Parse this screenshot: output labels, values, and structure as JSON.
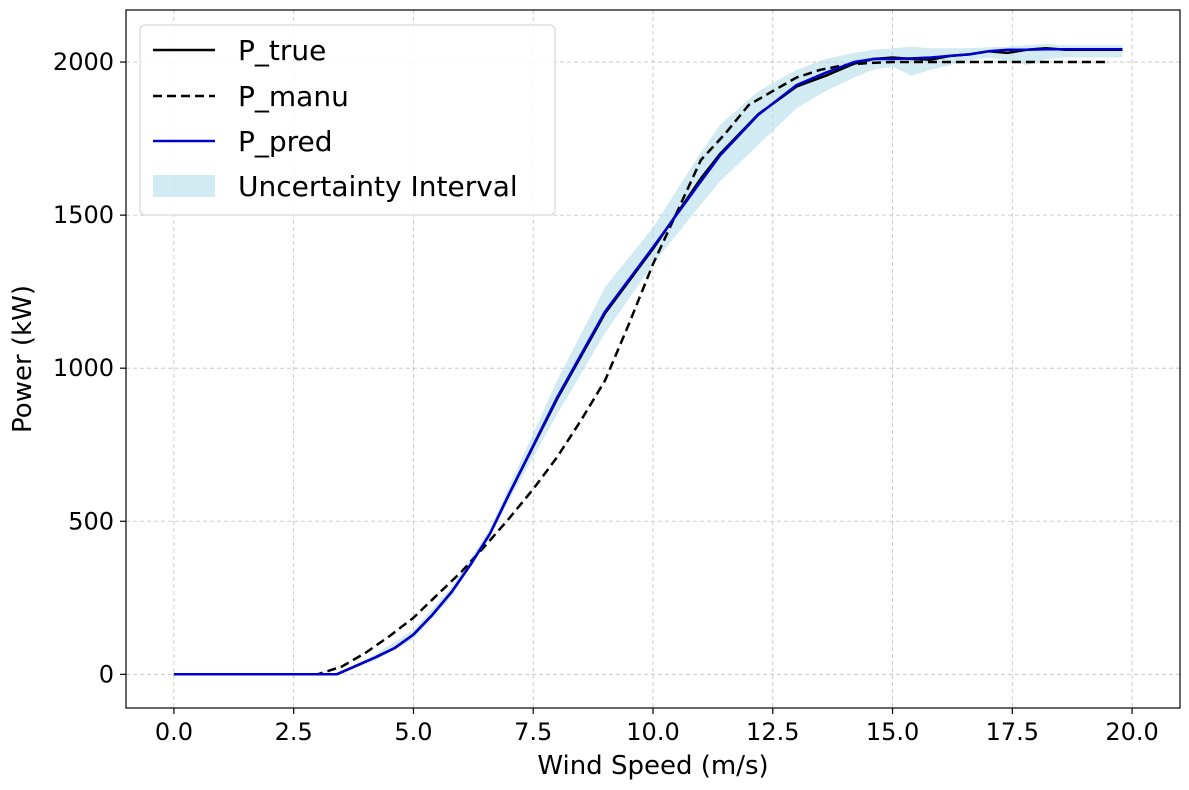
{
  "chart_data": {
    "type": "line",
    "xlabel": "Wind Speed (m/s)",
    "ylabel": "Power (kW)",
    "xlim": [
      -1.0,
      21.0
    ],
    "ylim": [
      -110,
      2170
    ],
    "xticks": [
      0.0,
      2.5,
      5.0,
      7.5,
      10.0,
      12.5,
      15.0,
      17.5,
      20.0
    ],
    "xtick_labels": [
      "0.0",
      "2.5",
      "5.0",
      "7.5",
      "10.0",
      "12.5",
      "15.0",
      "17.5",
      "20.0"
    ],
    "yticks": [
      0,
      500,
      1000,
      1500,
      2000
    ],
    "ytick_labels": [
      "0",
      "500",
      "1000",
      "1500",
      "2000"
    ],
    "grid": true,
    "legend_position": "top-left",
    "series": [
      {
        "name": "P_true",
        "style": "solid",
        "color": "#000000",
        "x": [
          0.0,
          1.0,
          2.0,
          3.0,
          3.4,
          4.2,
          4.6,
          5.0,
          5.4,
          5.8,
          6.2,
          6.6,
          7.0,
          8.0,
          9.0,
          10.0,
          11.0,
          11.4,
          12.2,
          13.0,
          13.6,
          14.2,
          14.6,
          15.0,
          15.4,
          15.8,
          16.2,
          16.6,
          17.0,
          17.4,
          17.8,
          18.2,
          18.6,
          19.0,
          19.8
        ],
        "values": [
          0,
          0,
          0,
          0,
          0,
          55,
          85,
          130,
          195,
          270,
          360,
          460,
          590,
          900,
          1180,
          1390,
          1620,
          1700,
          1830,
          1920,
          1955,
          1995,
          2010,
          2015,
          2010,
          2008,
          2020,
          2025,
          2035,
          2030,
          2040,
          2045,
          2040,
          2040,
          2040
        ]
      },
      {
        "name": "P_manu",
        "style": "dashed",
        "color": "#000000",
        "x": [
          0.0,
          1.0,
          2.0,
          3.0,
          3.5,
          4.0,
          4.5,
          5.0,
          5.5,
          6.0,
          6.5,
          7.0,
          7.5,
          8.0,
          8.5,
          9.0,
          9.5,
          10.0,
          10.5,
          11.0,
          11.5,
          12.0,
          12.5,
          13.0,
          13.5,
          14.0,
          14.5,
          15.0,
          16.0,
          17.0,
          18.0,
          19.0,
          19.5
        ],
        "values": [
          0,
          0,
          0,
          0,
          25,
          70,
          125,
          185,
          260,
          335,
          420,
          510,
          605,
          710,
          830,
          960,
          1145,
          1340,
          1510,
          1680,
          1765,
          1860,
          1905,
          1950,
          1975,
          1990,
          1997,
          2000,
          2000,
          2000,
          2000,
          2000,
          2000
        ]
      },
      {
        "name": "P_pred",
        "style": "solid",
        "color": "#0000cc",
        "x": [
          0.0,
          1.0,
          2.0,
          3.0,
          3.4,
          4.2,
          4.6,
          5.0,
          5.4,
          5.8,
          6.2,
          6.6,
          7.0,
          8.0,
          9.0,
          10.0,
          11.0,
          11.4,
          12.2,
          13.0,
          13.6,
          14.2,
          14.6,
          15.0,
          15.4,
          15.8,
          16.2,
          16.6,
          17.0,
          17.4,
          17.8,
          18.2,
          18.6,
          19.0,
          19.8
        ],
        "values": [
          0,
          0,
          0,
          0,
          0,
          55,
          85,
          130,
          195,
          270,
          360,
          460,
          590,
          905,
          1185,
          1395,
          1610,
          1695,
          1828,
          1925,
          1965,
          2000,
          2010,
          2010,
          2012,
          2015,
          2020,
          2025,
          2035,
          2040,
          2040,
          2042,
          2042,
          2042,
          2042
        ]
      }
    ],
    "band": {
      "name": "Uncertainty Interval",
      "color": "#add8e6",
      "x": [
        0.0,
        3.0,
        3.4,
        4.2,
        5.0,
        5.8,
        6.6,
        7.0,
        8.0,
        9.0,
        10.0,
        11.0,
        11.4,
        12.2,
        13.0,
        13.6,
        14.2,
        14.6,
        15.0,
        15.4,
        15.8,
        16.2,
        16.6,
        17.0,
        17.4,
        17.8,
        18.2,
        18.6,
        19.0,
        19.8
      ],
      "lower": [
        0,
        0,
        0,
        45,
        115,
        255,
        450,
        570,
        850,
        1115,
        1340,
        1535,
        1610,
        1730,
        1850,
        1905,
        1950,
        1975,
        1985,
        1955,
        1975,
        1990,
        2005,
        2015,
        2005,
        1990,
        2010,
        2015,
        2015,
        2015
      ],
      "upper": [
        0,
        0,
        0,
        65,
        145,
        285,
        475,
        615,
        960,
        1265,
        1460,
        1705,
        1795,
        1905,
        1975,
        2010,
        2030,
        2040,
        2045,
        2050,
        2045,
        2045,
        2045,
        2048,
        2050,
        2055,
        2060,
        2055,
        2055,
        2055
      ]
    }
  }
}
